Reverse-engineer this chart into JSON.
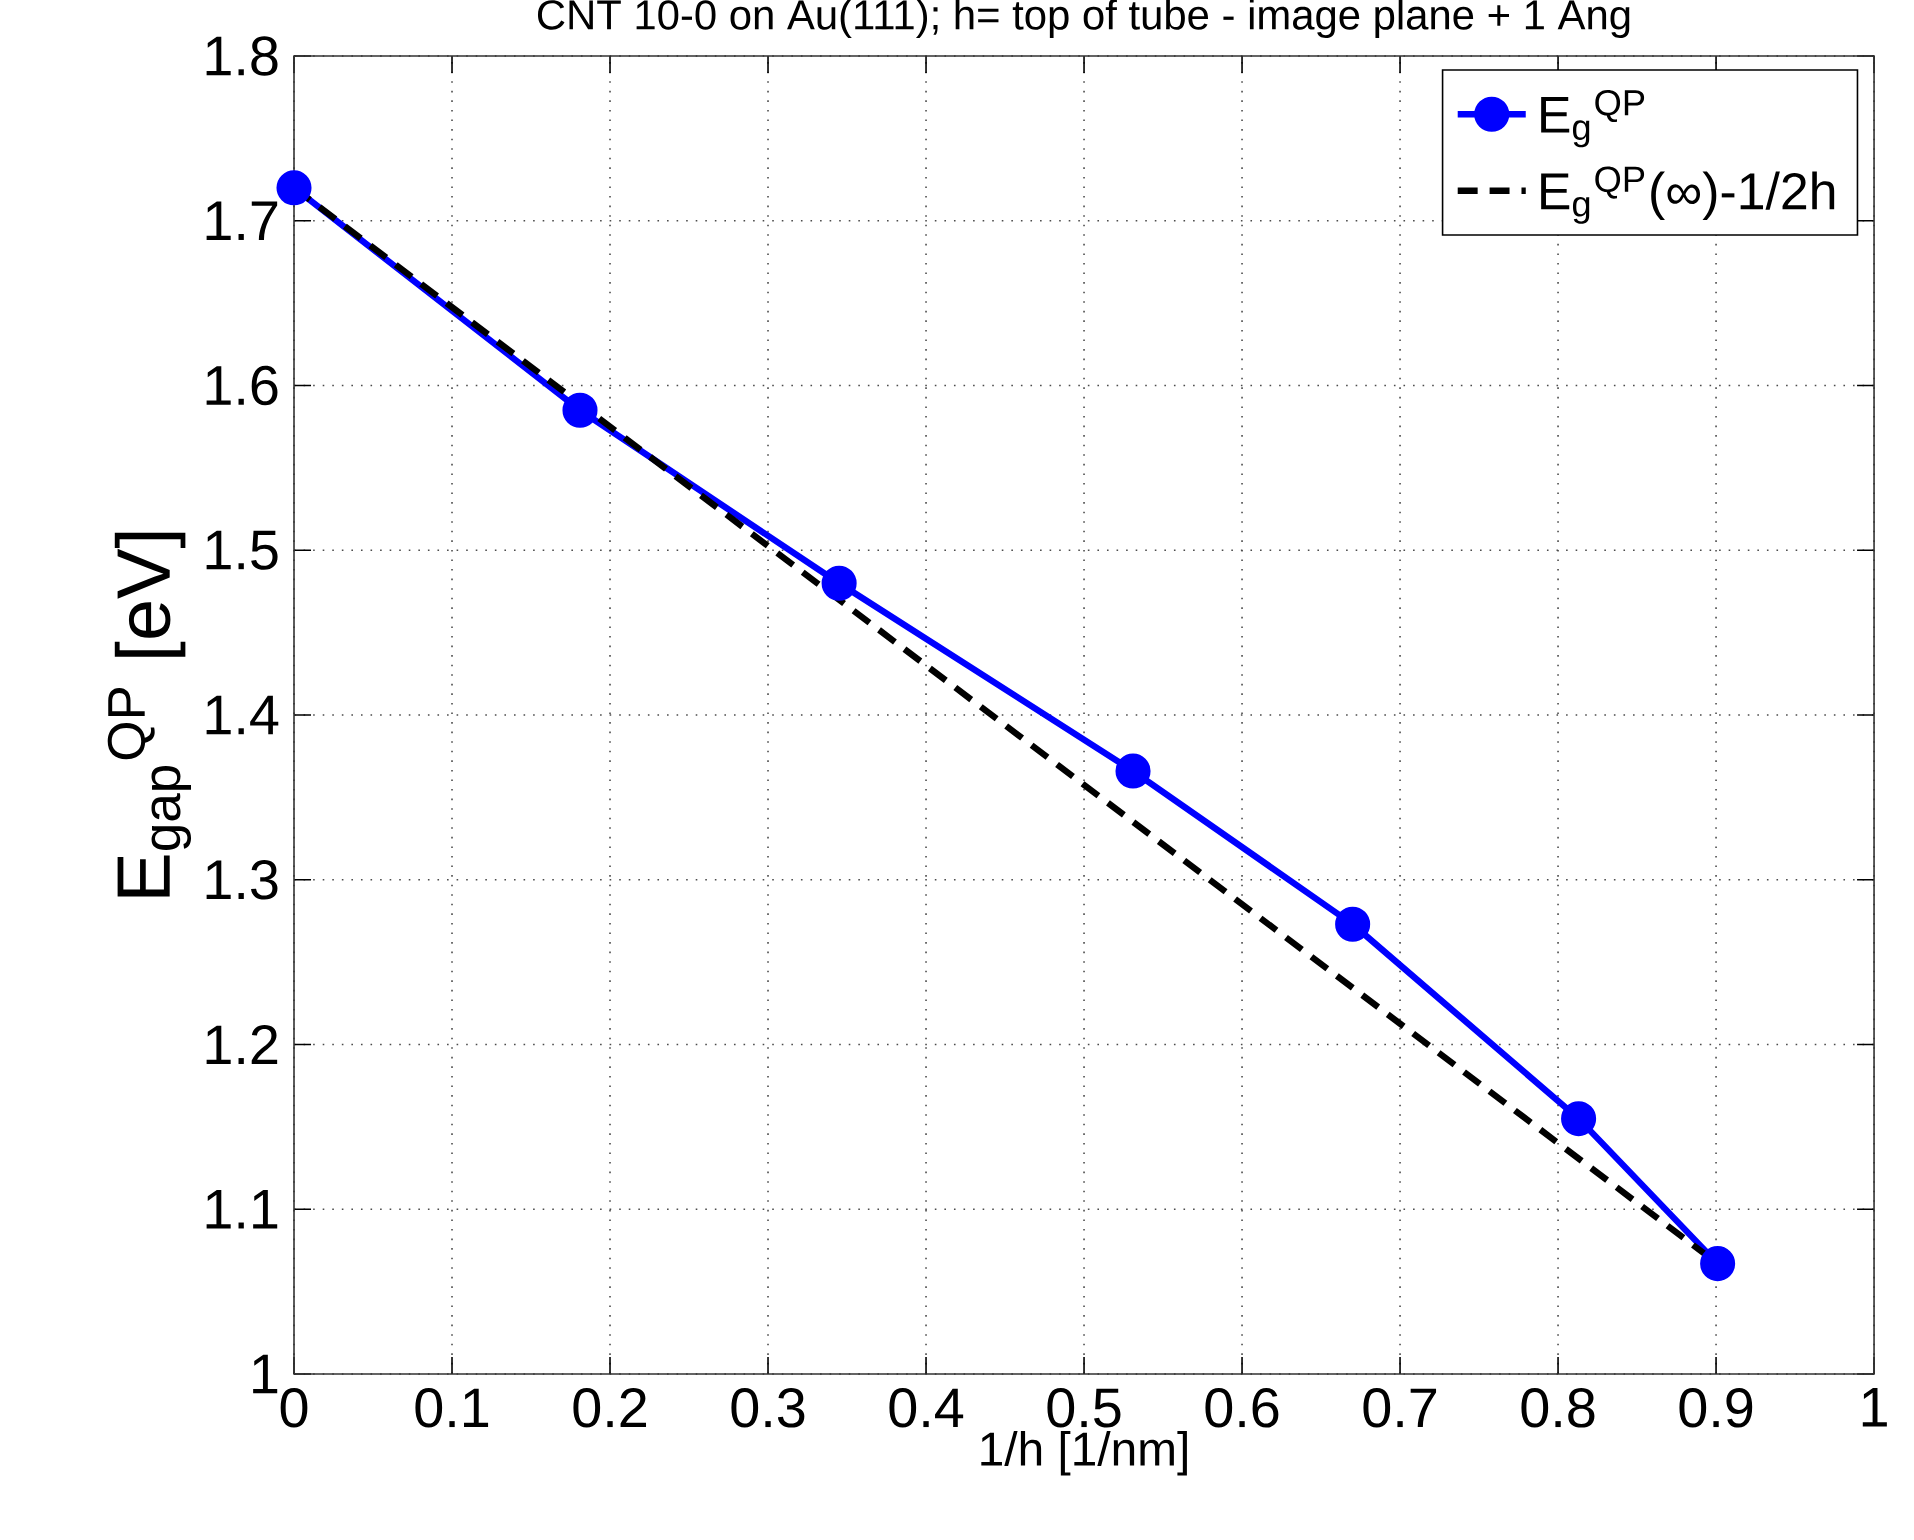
{
  "chart_data": {
    "type": "line",
    "title": "CNT 10-0 on Au(111); h= top of tube - image plane + 1 Ang",
    "xlabel": "1/h [1/nm]",
    "ylabel": "E$_{gap}$$^{QP}$ [eV]",
    "x": [
      0,
      0.181,
      0.345,
      0.531,
      0.67,
      0.813,
      0.901
    ],
    "series": [
      {
        "name": "E$_{g}$$^{QP}$",
        "color": "#0000ff",
        "values": [
          1.72,
          1.585,
          1.48,
          1.366,
          1.273,
          1.155,
          1.067
        ],
        "marker": "circle",
        "line_style": "solid"
      },
      {
        "name": "E$_{g}$$^{QP}$(∞)-1/2h",
        "color": "#000000",
        "x": [
          0,
          0.901
        ],
        "values": [
          1.72,
          1.067
        ],
        "marker": "none",
        "line_style": "dashed"
      }
    ],
    "xlim": [
      0,
      1
    ],
    "ylim": [
      1,
      1.8
    ],
    "xticks": [
      0,
      0.1,
      0.2,
      0.3,
      0.4,
      0.5,
      0.6,
      0.7,
      0.8,
      0.9,
      1
    ],
    "yticks": [
      1,
      1.1,
      1.2,
      1.3,
      1.4,
      1.5,
      1.6,
      1.7,
      1.8
    ],
    "grid": true,
    "legend": "top right"
  }
}
